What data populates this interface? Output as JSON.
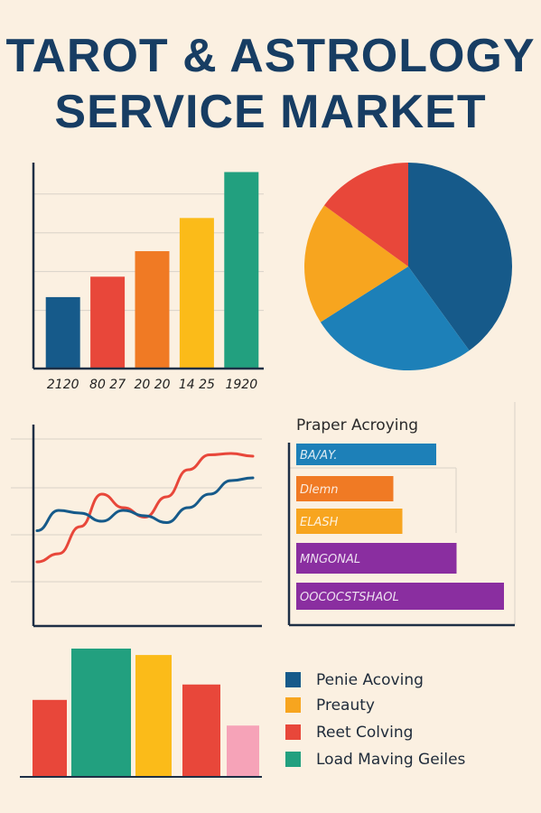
{
  "title_lines": [
    "TAROT & ASTROLOGY",
    "SERVICE MARKET"
  ],
  "colors": {
    "navy": "#173d63",
    "blue": "#165a8a",
    "light_blue": "#1d80b8",
    "red": "#e8473a",
    "orange": "#f07a24",
    "amber": "#f7a51f",
    "yellow": "#fbbb19",
    "teal": "#22a07f",
    "purple": "#8a2ea0",
    "pink": "#f6a3b8",
    "axis": "#1e2f45",
    "grid": "#d9d2c8"
  },
  "chart_data": [
    {
      "id": "bar-top",
      "type": "bar",
      "categories": [
        "2120",
        "80 27",
        "20 20",
        "14 25",
        "1920"
      ],
      "values": [
        28,
        36,
        46,
        59,
        77
      ],
      "ylim": [
        0,
        80
      ],
      "grid": true,
      "bar_colors": [
        "#165a8a",
        "#e8473a",
        "#f07a24",
        "#fbbb19",
        "#22a07f"
      ]
    },
    {
      "id": "pie",
      "type": "pie",
      "slices": [
        {
          "value": 40,
          "color": "#165a8a"
        },
        {
          "value": 26,
          "color": "#1d80b8"
        },
        {
          "value": 19,
          "color": "#f7a51f"
        },
        {
          "value": 15,
          "color": "#e8473a"
        }
      ]
    },
    {
      "id": "line",
      "type": "line",
      "x": [
        0,
        1,
        2,
        3,
        4,
        5,
        6,
        7,
        8,
        9,
        10
      ],
      "ylim": [
        0,
        100
      ],
      "grid": true,
      "series": [
        {
          "color": "#e8473a",
          "values": [
            12,
            18,
            38,
            62,
            52,
            45,
            60,
            80,
            91,
            92,
            90
          ]
        },
        {
          "color": "#165a8a",
          "values": [
            35,
            50,
            48,
            42,
            50,
            46,
            41,
            52,
            62,
            72,
            74
          ]
        }
      ]
    },
    {
      "id": "hbar",
      "type": "bar",
      "orientation": "horizontal",
      "title": "Praper Acroying",
      "categories": [
        "BA/AY.",
        "Dlemn",
        "ELASH",
        "MNGONAL",
        "OOCOCSTSHAOL"
      ],
      "values": [
        62,
        43,
        47,
        71,
        92
      ],
      "xlim": [
        0,
        100
      ],
      "bar_colors": [
        "#1d80b8",
        "#f07a24",
        "#f7a51f",
        "#8a2ea0",
        "#8a2ea0"
      ]
    },
    {
      "id": "bar-bottom",
      "type": "bar",
      "values": [
        60,
        100,
        95,
        72,
        40
      ],
      "ylim": [
        0,
        100
      ],
      "bar_colors": [
        "#e8473a",
        "#22a07f",
        "#fbbb19",
        "#e8473a",
        "#f6a3b8"
      ]
    }
  ],
  "legend": [
    {
      "label": "Penie Acoving",
      "color": "#165a8a"
    },
    {
      "label": "Preauty",
      "color": "#f7a51f"
    },
    {
      "label": "Reet Colving",
      "color": "#e8473a"
    },
    {
      "label": "Load Maving Geiles",
      "color": "#22a07f"
    }
  ]
}
